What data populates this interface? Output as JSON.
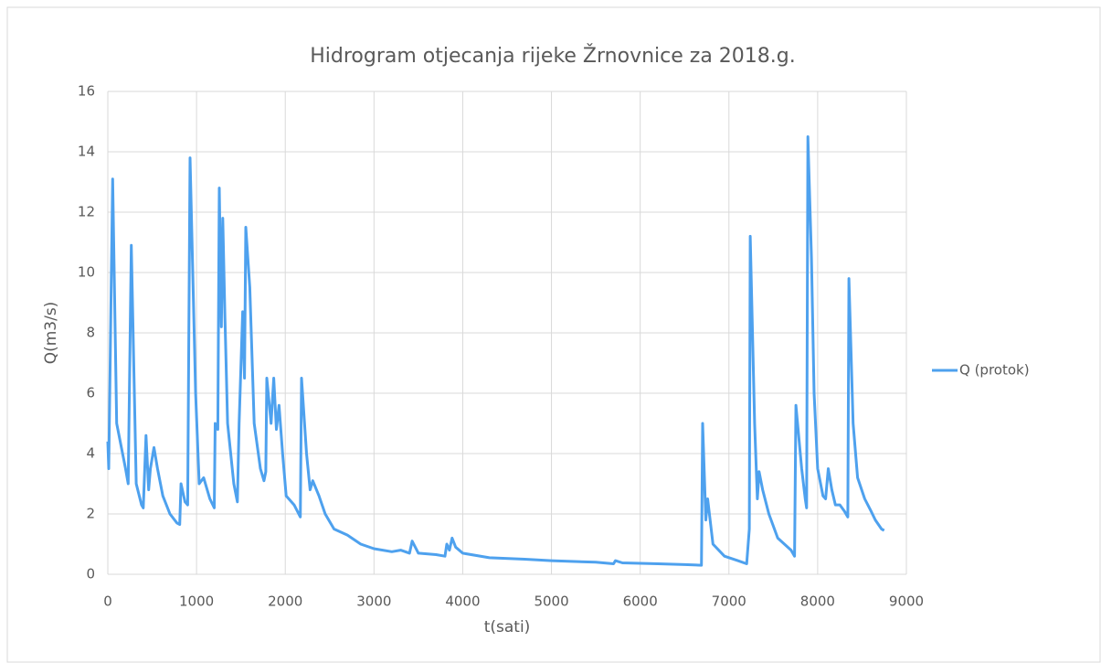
{
  "chart_data": {
    "type": "line",
    "title": "Hidrogram otjecanja rijeke Žrnovnice za 2018.g.",
    "xlabel": "t(sati)",
    "ylabel": "Q(m3/s)",
    "xlim": [
      0,
      9000
    ],
    "xticks": [
      0,
      1000,
      2000,
      3000,
      4000,
      5000,
      6000,
      7000,
      8000,
      9000
    ],
    "ylim": [
      0,
      16
    ],
    "yticks": [
      0,
      2,
      4,
      6,
      8,
      10,
      12,
      14,
      16
    ],
    "grid": true,
    "legend": "right",
    "series": [
      {
        "name": "Q (protok)",
        "color": "#4ea1ee",
        "x": [
          0,
          10,
          55,
          100,
          200,
          230,
          265,
          320,
          380,
          400,
          430,
          460,
          480,
          520,
          560,
          620,
          700,
          780,
          810,
          825,
          870,
          900,
          927,
          990,
          1030,
          1080,
          1150,
          1200,
          1210,
          1240,
          1256,
          1280,
          1295,
          1320,
          1350,
          1420,
          1460,
          1480,
          1520,
          1540,
          1555,
          1600,
          1650,
          1720,
          1760,
          1780,
          1792,
          1840,
          1870,
          1900,
          1930,
          1970,
          2010,
          2100,
          2170,
          2183,
          2240,
          2280,
          2310,
          2380,
          2450,
          2550,
          2700,
          2850,
          3000,
          3200,
          3300,
          3400,
          3430,
          3500,
          3700,
          3800,
          3820,
          3850,
          3880,
          3920,
          4000,
          4300,
          4700,
          5000,
          5500,
          5700,
          5720,
          5800,
          6200,
          6500,
          6690,
          6704,
          6740,
          6760,
          6820,
          6950,
          7100,
          7200,
          7230,
          7240,
          7290,
          7320,
          7340,
          7380,
          7450,
          7550,
          7700,
          7740,
          7755,
          7820,
          7860,
          7875,
          7890,
          7930,
          7960,
          8000,
          8060,
          8090,
          8120,
          8160,
          8200,
          8250,
          8300,
          8340,
          8352,
          8400,
          8450,
          8530,
          8600,
          8650,
          8720,
          8750
        ],
        "values": [
          4.4,
          3.5,
          13.1,
          5,
          3.5,
          3,
          10.9,
          3,
          2.3,
          2.2,
          4.6,
          2.8,
          3.5,
          4.2,
          3.5,
          2.6,
          2,
          1.7,
          1.65,
          3,
          2.4,
          2.3,
          13.8,
          6,
          3,
          3.2,
          2.5,
          2.2,
          5,
          4.8,
          12.8,
          8.2,
          11.8,
          8.5,
          5,
          3,
          2.4,
          5,
          8.7,
          6.5,
          11.5,
          9.5,
          5,
          3.5,
          3.1,
          3.4,
          6.5,
          5,
          6.5,
          4.8,
          5.6,
          4,
          2.6,
          2.3,
          1.9,
          6.5,
          4,
          2.8,
          3.1,
          2.6,
          2,
          1.5,
          1.3,
          1,
          0.85,
          0.75,
          0.8,
          0.7,
          1.1,
          0.7,
          0.65,
          0.6,
          1,
          0.8,
          1.2,
          0.9,
          0.7,
          0.55,
          0.5,
          0.45,
          0.4,
          0.35,
          0.45,
          0.38,
          0.35,
          0.32,
          0.3,
          5,
          1.8,
          2.5,
          1,
          0.6,
          0.45,
          0.35,
          1.5,
          11.2,
          5,
          2.5,
          3.4,
          2.8,
          2,
          1.2,
          0.8,
          0.6,
          5.6,
          3.5,
          2.5,
          2.2,
          14.5,
          10.5,
          6,
          3.5,
          2.6,
          2.5,
          3.5,
          2.8,
          2.3,
          2.3,
          2.1,
          1.9,
          9.8,
          5,
          3.2,
          2.5,
          2.1,
          1.8,
          1.5,
          1.45
        ]
      }
    ]
  }
}
